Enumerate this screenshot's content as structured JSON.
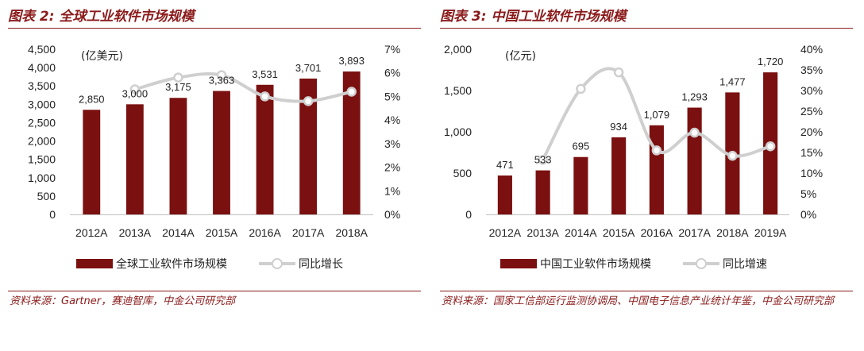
{
  "figures": [
    {
      "title": "图表 2:  全球工业软件市场规模",
      "unit_label": "(亿美元)",
      "legend": [
        "全球工业软件市场规模",
        "同比增长"
      ],
      "source": "资料来源：Gartner，赛迪智库，中金公司研究部"
    },
    {
      "title": "图表 3:  中国工业软件市场规模",
      "unit_label": "(亿元)",
      "legend": [
        "中国工业软件市场规模",
        "同比增速"
      ],
      "source": "资料来源：国家工信部运行监测协调局、中国电子信息产业统计年鉴，中金公司研究部"
    }
  ],
  "colors": {
    "bar": "#7b1010",
    "line": "#cfcfcf",
    "title": "#8b1a1a"
  },
  "chart_data": [
    {
      "type": "bar",
      "categories": [
        "2012A",
        "2013A",
        "2014A",
        "2015A",
        "2016A",
        "2017A",
        "2018A"
      ],
      "series": [
        {
          "name": "全球工业软件市场规模",
          "type": "bar",
          "axis": "left",
          "values": [
            2850,
            3000,
            3175,
            3363,
            3531,
            3701,
            3893
          ],
          "labels": [
            "2,850",
            "3,000",
            "3,175",
            "3,363",
            "3,531",
            "3,701",
            "3,893"
          ]
        },
        {
          "name": "同比增长",
          "type": "line",
          "axis": "right",
          "values": [
            null,
            5.3,
            5.8,
            5.9,
            5.0,
            4.8,
            5.2
          ]
        }
      ],
      "ylim_left": [
        0,
        4500
      ],
      "yticks_left": [
        "0",
        "500",
        "1,000",
        "1,500",
        "2,000",
        "2,500",
        "3,000",
        "3,500",
        "4,000",
        "4,500"
      ],
      "ylim_right": [
        0,
        7
      ],
      "yticks_right": [
        "0%",
        "1%",
        "2%",
        "3%",
        "4%",
        "5%",
        "6%",
        "7%"
      ],
      "grid": false,
      "legend_position": "bottom"
    },
    {
      "type": "bar",
      "categories": [
        "2012A",
        "2013A",
        "2014A",
        "2015A",
        "2016A",
        "2017A",
        "2018A",
        "2019A"
      ],
      "series": [
        {
          "name": "中国工业软件市场规模",
          "type": "bar",
          "axis": "left",
          "values": [
            471,
            533,
            695,
            934,
            1079,
            1293,
            1477,
            1720
          ],
          "labels": [
            "471",
            "533",
            "695",
            "934",
            "1,079",
            "1,293",
            "1,477",
            "1,720"
          ]
        },
        {
          "name": "同比增速",
          "type": "line",
          "axis": "right",
          "values": [
            null,
            13.2,
            30.4,
            34.4,
            15.5,
            19.8,
            14.2,
            16.5
          ]
        }
      ],
      "ylim_left": [
        0,
        2000
      ],
      "yticks_left": [
        "0",
        "500",
        "1,000",
        "1,500",
        "2,000"
      ],
      "ylim_right": [
        0,
        40
      ],
      "yticks_right": [
        "0%",
        "5%",
        "10%",
        "15%",
        "20%",
        "25%",
        "30%",
        "35%",
        "40%"
      ],
      "grid": false,
      "legend_position": "bottom"
    }
  ]
}
